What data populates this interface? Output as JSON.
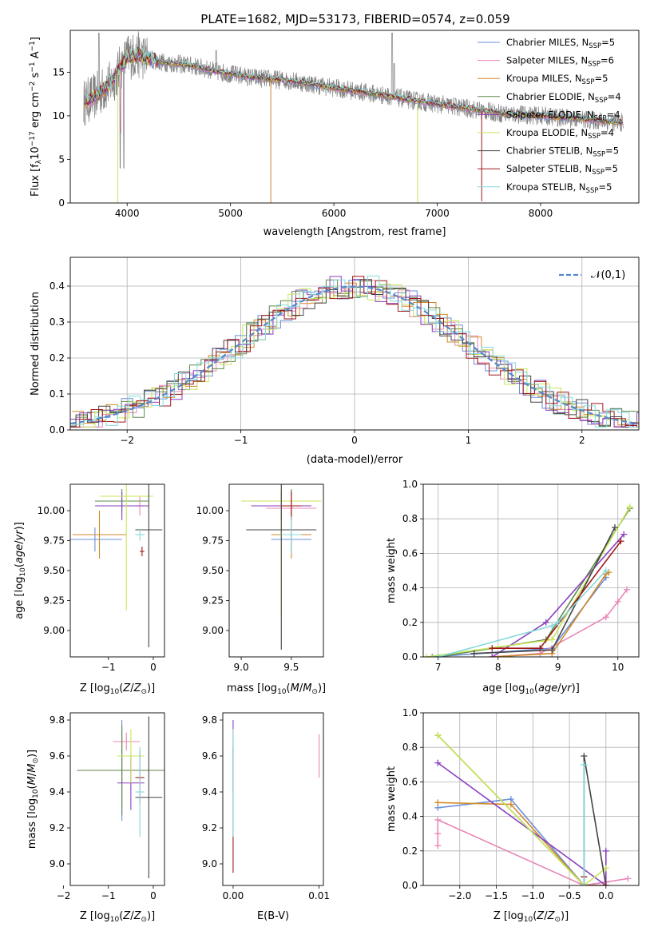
{
  "title": "PLATE=1682, MJD=53173, FIBERID=0574, z=0.059",
  "colors": [
    "#6a8fd8",
    "#e887b8",
    "#d08a2a",
    "#5f8a4f",
    "#8a3fc0",
    "#c8e65a",
    "#444444",
    "#a01818",
    "#86d9dc"
  ],
  "legend": [
    {
      "label": "Chabrier MILES, N",
      "sub": "SSP",
      "suffix": "=5"
    },
    {
      "label": "Salpeter MILES, N",
      "sub": "SSP",
      "suffix": "=6"
    },
    {
      "label": "Kroupa MILES, N",
      "sub": "SSP",
      "suffix": "=5"
    },
    {
      "label": "Chabrier ELODIE, N",
      "sub": "SSP",
      "suffix": "=4"
    },
    {
      "label": "Salpeter ELODIE, N",
      "sub": "SSP",
      "suffix": "=4"
    },
    {
      "label": "Kroupa ELODIE, N",
      "sub": "SSP",
      "suffix": "=4"
    },
    {
      "label": "Chabrier STELIB, N",
      "sub": "SSP",
      "suffix": "=5"
    },
    {
      "label": "Salpeter STELIB, N",
      "sub": "SSP",
      "suffix": "=5"
    },
    {
      "label": "Kroupa STELIB, N",
      "sub": "SSP",
      "suffix": "=5"
    }
  ],
  "chart_data": [
    {
      "type": "line",
      "xlabel": "wavelength [Angstrom, rest frame]",
      "ylabel": "Flux [f_λ 10^-17 erg cm^-2 s^-1 A^-1]",
      "xlim": [
        3450,
        8950
      ],
      "ylim": [
        0,
        19.8
      ],
      "xticks": [
        4000,
        5000,
        6000,
        7000,
        8000
      ],
      "yticks": [
        0,
        5,
        10,
        15
      ],
      "grid": false,
      "legend_placement": "top-right",
      "spectrum_knots": [
        [
          3580,
          11.5
        ],
        [
          3700,
          12.3
        ],
        [
          3850,
          13.8
        ],
        [
          4000,
          16.8
        ],
        [
          4100,
          17.0
        ],
        [
          4300,
          16.2
        ],
        [
          4600,
          15.8
        ],
        [
          4900,
          15.0
        ],
        [
          5200,
          14.4
        ],
        [
          5600,
          14.0
        ],
        [
          6000,
          13.2
        ],
        [
          6400,
          12.5
        ],
        [
          6800,
          11.7
        ],
        [
          7200,
          11.0
        ],
        [
          7600,
          10.3
        ],
        [
          8000,
          10.0
        ],
        [
          8400,
          9.6
        ],
        [
          8800,
          9.2
        ]
      ]
    },
    {
      "type": "line",
      "xlabel": "(data-model)/error",
      "ylabel": "Normed distribution",
      "xlim": [
        -2.5,
        2.5
      ],
      "ylim": [
        0,
        0.48
      ],
      "xticks": [
        -2,
        -1,
        0,
        1,
        2
      ],
      "yticks": [
        0.0,
        0.1,
        0.2,
        0.3,
        0.4
      ],
      "grid": true,
      "legend_placement": "top-right",
      "legend": "𝒩(0,1)",
      "gaussian": {
        "mean": 0,
        "sigma": 1
      }
    },
    {
      "type": "scatter",
      "xlabel": "Z [log10(Z/Z⊙)]",
      "ylabel": "age [log10(age/yr)]",
      "xlim": [
        -1.85,
        0.25
      ],
      "ylim": [
        8.78,
        10.22
      ],
      "xticks": [
        -1,
        0
      ],
      "yticks": [
        9.0,
        9.25,
        9.5,
        9.75,
        10.0
      ],
      "points": [
        {
          "x": -1.3,
          "xe": 0.6,
          "y": 9.76,
          "ye": 0.1
        },
        {
          "x": -0.3,
          "xe": 0.1,
          "y": 10.04,
          "ye": 0.08
        },
        {
          "x": -1.2,
          "xe": 0.6,
          "y": 9.8,
          "ye": 0.2
        },
        {
          "x": -0.7,
          "xe": 0.6,
          "y": 10.08,
          "ye": 0.1
        },
        {
          "x": -0.7,
          "xe": 0.6,
          "y": 10.04,
          "ye": 0.12
        },
        {
          "x": -0.6,
          "xe": 0.6,
          "y": 10.12,
          "ye": 0.95
        },
        {
          "x": -0.1,
          "xe": 0.3,
          "y": 9.84,
          "ye": 0.98
        },
        {
          "x": -0.25,
          "xe": 0.05,
          "y": 9.66,
          "ye": 0.04
        },
        {
          "x": -0.3,
          "xe": 0.1,
          "y": 9.8,
          "ye": 0.05
        }
      ]
    },
    {
      "type": "scatter",
      "xlabel": "mass [log10(M/M⊙)]",
      "ylabel": "",
      "xlim": [
        8.88,
        9.82
      ],
      "ylim": [
        8.78,
        10.22
      ],
      "xticks": [
        9.0,
        9.5
      ],
      "yticks": [
        9.0,
        9.25,
        9.5,
        9.75,
        10.0
      ],
      "points": [
        {
          "x": 9.5,
          "xe": 0.2,
          "y": 9.76,
          "ye": 0.1
        },
        {
          "x": 9.5,
          "xe": 0.25,
          "y": 10.02,
          "ye": 0.08
        },
        {
          "x": 9.5,
          "xe": 0.2,
          "y": 9.8,
          "ye": 0.2
        },
        {
          "x": 9.5,
          "xe": 0.2,
          "y": 10.08,
          "ye": 0.1
        },
        {
          "x": 9.4,
          "xe": 0.3,
          "y": 10.04,
          "ye": 0.12
        },
        {
          "x": 9.4,
          "xe": 0.4,
          "y": 10.08,
          "ye": 0.95
        },
        {
          "x": 9.4,
          "xe": 0.35,
          "y": 9.84,
          "ye": 1.0
        },
        {
          "x": 9.5,
          "xe": 0.1,
          "y": 10.04,
          "ye": 0.12
        },
        {
          "x": 9.5,
          "xe": 0.1,
          "y": 9.8,
          "ye": 0.15
        }
      ]
    },
    {
      "type": "line",
      "xlabel": "age [log10(age/yr)]",
      "ylabel": "mass weight",
      "xlim": [
        6.75,
        10.35
      ],
      "ylim": [
        0,
        1.0
      ],
      "xticks": [
        7,
        8,
        9,
        10
      ],
      "yticks": [
        0.0,
        0.2,
        0.4,
        0.6,
        0.8,
        1.0
      ],
      "grid": true,
      "series": [
        {
          "x": [
            6.9,
            8.9,
            9.8
          ],
          "y": [
            0.0,
            0.05,
            0.46
          ]
        },
        {
          "x": [
            7.9,
            8.7,
            9.8,
            10.0,
            10.15
          ],
          "y": [
            0.0,
            0.02,
            0.23,
            0.32,
            0.39
          ]
        },
        {
          "x": [
            7.9,
            8.9,
            9.8,
            9.85
          ],
          "y": [
            0.0,
            0.02,
            0.48,
            0.49
          ]
        },
        {
          "x": [
            7.0,
            8.8,
            10.2
          ],
          "y": [
            0.0,
            0.1,
            0.86
          ]
        },
        {
          "x": [
            7.9,
            8.8,
            10.1
          ],
          "y": [
            0.0,
            0.2,
            0.71
          ]
        },
        {
          "x": [
            6.8,
            8.9,
            10.2
          ],
          "y": [
            0.0,
            0.1,
            0.87
          ]
        },
        {
          "x": [
            7.6,
            8.9,
            9.95
          ],
          "y": [
            0.02,
            0.04,
            0.75
          ]
        },
        {
          "x": [
            7.9,
            8.7,
            10.05
          ],
          "y": [
            0.05,
            0.05,
            0.67
          ]
        },
        {
          "x": [
            7.0,
            8.9,
            9.0,
            9.8
          ],
          "y": [
            0.0,
            0.18,
            0.2,
            0.5
          ]
        }
      ]
    },
    {
      "type": "scatter",
      "xlabel": "Z [log10(Z/Z⊙)]",
      "ylabel": "mass [log10(M/M⊙)]",
      "xlim": [
        -1.85,
        0.25
      ],
      "ylim": [
        8.88,
        9.84
      ],
      "xticks": [
        -2,
        -1,
        0
      ],
      "yticks": [
        9.0,
        9.2,
        9.4,
        9.6,
        9.8
      ],
      "points": [
        {
          "x": -0.7,
          "xe": 1.0,
          "y": 9.52,
          "ye": 0.28
        },
        {
          "x": -0.6,
          "xe": 0.3,
          "y": 9.68,
          "ye": 0.05
        },
        {
          "x": -0.7,
          "xe": 1.0,
          "y": 9.52,
          "ye": 0.2
        },
        {
          "x": -0.7,
          "xe": 1.0,
          "y": 9.52,
          "ye": 0.25
        },
        {
          "x": -0.5,
          "xe": 0.3,
          "y": 9.45,
          "ye": 0.15
        },
        {
          "x": -0.5,
          "xe": 0.3,
          "y": 9.6,
          "ye": 0.15
        },
        {
          "x": -0.1,
          "xe": 0.3,
          "y": 9.37,
          "ye": 0.45
        },
        {
          "x": -0.3,
          "xe": 0.1,
          "y": 9.48,
          "ye": 0.15
        },
        {
          "x": -0.3,
          "xe": 0.1,
          "y": 9.4,
          "ye": 0.25
        }
      ]
    },
    {
      "type": "scatter",
      "xlabel": "E(B-V)",
      "ylabel": "",
      "xlim": [
        -0.0012,
        0.0105
      ],
      "ylim": [
        8.88,
        9.84
      ],
      "xticks": [
        0.0,
        0.01
      ],
      "yticks": [
        9.0,
        9.2,
        9.4,
        9.6,
        9.8
      ],
      "points": [
        {
          "x": 0.0,
          "y": 9.6,
          "ye": 0.2
        },
        {
          "x": 0.01,
          "y": 9.6,
          "ye": 0.12
        },
        {
          "x": 0.0,
          "y": 9.3,
          "ye": 0.35
        },
        {
          "x": 0.0,
          "y": 9.45,
          "ye": 0.3
        }
      ]
    },
    {
      "type": "line",
      "xlabel": "Z [log10(Z/Z⊙)]",
      "ylabel": "mass weight",
      "xlim": [
        -2.5,
        0.45
      ],
      "ylim": [
        0,
        1.0
      ],
      "xticks": [
        -2.0,
        -1.5,
        -1.0,
        -0.5,
        0.0
      ],
      "yticks": [
        0.0,
        0.2,
        0.4,
        0.6,
        0.8,
        1.0
      ],
      "grid": true,
      "series": [
        {
          "x": [
            -2.3,
            -1.3,
            -0.3,
            0.0
          ],
          "y": [
            0.45,
            0.5,
            0.0,
            0.02
          ]
        },
        {
          "x": [
            -2.3,
            -2.3,
            -2.3,
            -0.3,
            0.3
          ],
          "y": [
            0.23,
            0.3,
            0.38,
            0.0,
            0.04
          ]
        },
        {
          "x": [
            -2.3,
            -1.3,
            -0.3,
            0.0
          ],
          "y": [
            0.48,
            0.47,
            0.0,
            0.0
          ]
        },
        {
          "x": [
            -2.3,
            -0.3,
            -0.3
          ],
          "y": [
            0.87,
            0.0,
            0.0
          ]
        },
        {
          "x": [
            -2.3,
            0.0,
            0.0
          ],
          "y": [
            0.71,
            0.0,
            0.2
          ]
        },
        {
          "x": [
            -2.3,
            -0.3,
            0.0
          ],
          "y": [
            0.87,
            0.0,
            0.1
          ]
        },
        {
          "x": [
            -0.3,
            -0.3,
            0.0
          ],
          "y": [
            0.0,
            0.75,
            0.0
          ]
        },
        {
          "x": [
            -0.3,
            -0.3,
            0.0
          ],
          "y": [
            0.05,
            0.0,
            0.0
          ]
        },
        {
          "x": [
            -0.3,
            -0.3,
            -0.3
          ],
          "y": [
            0.7,
            0.0,
            0.0
          ]
        }
      ]
    }
  ]
}
